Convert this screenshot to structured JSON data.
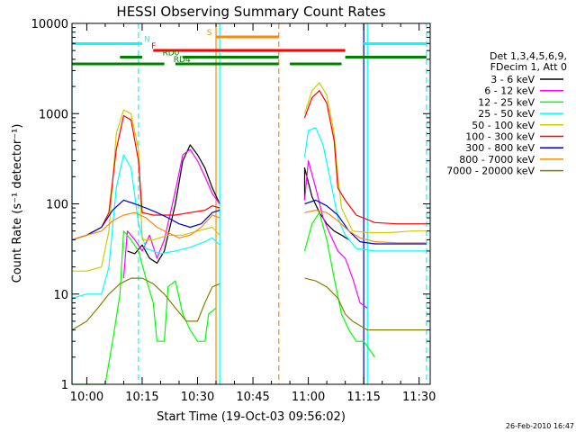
{
  "chart_data": {
    "type": "line",
    "title": "HESSI Observing Summary Count Rates",
    "xlabel": "Start Time (19-Oct-03 09:56:02)",
    "ylabel": "Count Rate (s⁻¹ detector⁻¹)",
    "yscale": "log",
    "ylim": [
      1,
      10000
    ],
    "xlim": [
      "09:56",
      "11:33"
    ],
    "x_ticks": [
      "10:00",
      "10:15",
      "10:30",
      "10:45",
      "11:00",
      "11:15",
      "11:30"
    ],
    "y_ticks": [
      "1",
      "10",
      "100",
      "1000",
      "10000"
    ],
    "grid": false,
    "legend_position": "right",
    "legend_header": [
      "Det 1,3,4,5,6,9,",
      "FDecim 1, Att 0"
    ],
    "footer": "26-Feb-2010 16:47",
    "series": [
      {
        "name": "3 - 6 keV",
        "color": "#000000",
        "points": [
          [
            "10:11",
            30
          ],
          [
            "10:13",
            28
          ],
          [
            "10:15",
            35
          ],
          [
            "10:17",
            25
          ],
          [
            "10:19",
            22
          ],
          [
            "10:21",
            30
          ],
          [
            "10:24",
            100
          ],
          [
            "10:26",
            300
          ],
          [
            "10:28",
            450
          ],
          [
            "10:30",
            350
          ],
          [
            "10:32",
            250
          ],
          [
            "10:34",
            150
          ],
          [
            "10:36",
            100
          ],
          [
            "10:59",
            110
          ],
          [
            "10:59",
            250
          ],
          [
            "11:01",
            120
          ],
          [
            "11:03",
            80
          ],
          [
            "11:05",
            60
          ],
          [
            "11:07",
            50
          ],
          [
            "11:09",
            45
          ],
          [
            "11:11",
            40
          ]
        ]
      },
      {
        "name": "6 - 12 keV",
        "color": "#ff00ff",
        "points": [
          [
            "10:10",
            15
          ],
          [
            "10:11",
            50
          ],
          [
            "10:13",
            40
          ],
          [
            "10:15",
            30
          ],
          [
            "10:17",
            45
          ],
          [
            "10:19",
            25
          ],
          [
            "10:21",
            40
          ],
          [
            "10:24",
            140
          ],
          [
            "10:26",
            350
          ],
          [
            "10:28",
            400
          ],
          [
            "10:30",
            300
          ],
          [
            "10:32",
            200
          ],
          [
            "10:34",
            130
          ],
          [
            "10:36",
            100
          ],
          [
            "10:59",
            110
          ],
          [
            "11:00",
            300
          ],
          [
            "11:02",
            150
          ],
          [
            "11:04",
            70
          ],
          [
            "11:06",
            45
          ],
          [
            "11:08",
            30
          ],
          [
            "11:10",
            25
          ],
          [
            "11:12",
            15
          ],
          [
            "11:14",
            8
          ],
          [
            "11:16",
            7
          ]
        ]
      },
      {
        "name": "12 - 25 keV",
        "color": "#00ff00",
        "points": [
          [
            "09:56",
            1
          ],
          [
            "10:05",
            1
          ],
          [
            "10:07",
            3
          ],
          [
            "10:09",
            10
          ],
          [
            "10:10",
            50
          ],
          [
            "10:12",
            40
          ],
          [
            "10:14",
            30
          ],
          [
            "10:16",
            15
          ],
          [
            "10:18",
            8
          ],
          [
            "10:19",
            3
          ],
          [
            "10:21",
            3
          ],
          [
            "10:22",
            12
          ],
          [
            "10:24",
            14
          ],
          [
            "10:26",
            6
          ],
          [
            "10:28",
            4
          ],
          [
            "10:30",
            3
          ],
          [
            "10:32",
            3
          ],
          [
            "10:33",
            6
          ],
          [
            "10:35",
            7
          ],
          [
            "10:59",
            30
          ],
          [
            "11:01",
            60
          ],
          [
            "11:03",
            80
          ],
          [
            "11:05",
            40
          ],
          [
            "11:07",
            15
          ],
          [
            "11:09",
            6
          ],
          [
            "11:11",
            4
          ],
          [
            "11:13",
            3
          ],
          [
            "11:15",
            3
          ],
          [
            "11:18",
            2
          ]
        ]
      },
      {
        "name": "25 - 50 keV",
        "color": "#00ffff",
        "points": [
          [
            "09:56",
            9
          ],
          [
            "10:00",
            10
          ],
          [
            "10:04",
            10
          ],
          [
            "10:06",
            20
          ],
          [
            "10:08",
            150
          ],
          [
            "10:10",
            350
          ],
          [
            "10:12",
            250
          ],
          [
            "10:14",
            60
          ],
          [
            "10:16",
            32
          ],
          [
            "10:20",
            28
          ],
          [
            "10:24",
            30
          ],
          [
            "10:28",
            33
          ],
          [
            "10:32",
            38
          ],
          [
            "10:34",
            42
          ],
          [
            "10:36",
            35
          ],
          [
            "10:59",
            330
          ],
          [
            "11:00",
            650
          ],
          [
            "11:02",
            700
          ],
          [
            "11:04",
            450
          ],
          [
            "11:06",
            180
          ],
          [
            "11:08",
            70
          ],
          [
            "11:10",
            45
          ],
          [
            "11:13",
            32
          ],
          [
            "11:18",
            30
          ],
          [
            "11:24",
            30
          ],
          [
            "11:32",
            30
          ]
        ]
      },
      {
        "name": "50 - 100 keV",
        "color": "#cccc00",
        "points": [
          [
            "09:56",
            18
          ],
          [
            "10:00",
            18
          ],
          [
            "10:04",
            20
          ],
          [
            "10:06",
            50
          ],
          [
            "10:08",
            600
          ],
          [
            "10:10",
            1100
          ],
          [
            "10:12",
            1000
          ],
          [
            "10:14",
            400
          ],
          [
            "10:15",
            40
          ],
          [
            "10:18",
            40
          ],
          [
            "10:22",
            45
          ],
          [
            "10:26",
            45
          ],
          [
            "10:30",
            50
          ],
          [
            "10:34",
            55
          ],
          [
            "10:36",
            45
          ],
          [
            "10:59",
            1000
          ],
          [
            "11:01",
            1800
          ],
          [
            "11:03",
            2200
          ],
          [
            "11:05",
            1600
          ],
          [
            "11:07",
            600
          ],
          [
            "11:08",
            200
          ],
          [
            "11:09",
            90
          ],
          [
            "11:12",
            50
          ],
          [
            "11:16",
            48
          ],
          [
            "11:22",
            48
          ],
          [
            "11:28",
            50
          ],
          [
            "11:32",
            50
          ]
        ]
      },
      {
        "name": "100 - 300 keV",
        "color": "#ff0000",
        "points": [
          [
            "09:56",
            40
          ],
          [
            "10:00",
            45
          ],
          [
            "10:04",
            55
          ],
          [
            "10:06",
            80
          ],
          [
            "10:08",
            400
          ],
          [
            "10:10",
            950
          ],
          [
            "10:12",
            850
          ],
          [
            "10:14",
            300
          ],
          [
            "10:15",
            80
          ],
          [
            "10:18",
            75
          ],
          [
            "10:24",
            75
          ],
          [
            "10:28",
            80
          ],
          [
            "10:32",
            85
          ],
          [
            "10:34",
            95
          ],
          [
            "10:36",
            90
          ],
          [
            "10:59",
            900
          ],
          [
            "11:01",
            1500
          ],
          [
            "11:03",
            1800
          ],
          [
            "11:05",
            1300
          ],
          [
            "11:07",
            500
          ],
          [
            "11:08",
            150
          ],
          [
            "11:10",
            110
          ],
          [
            "11:13",
            75
          ],
          [
            "11:18",
            62
          ],
          [
            "11:24",
            60
          ],
          [
            "11:32",
            60
          ]
        ]
      },
      {
        "name": "300 - 800 keV",
        "color": "#0000cc",
        "points": [
          [
            "09:56",
            40
          ],
          [
            "10:00",
            45
          ],
          [
            "10:04",
            55
          ],
          [
            "10:07",
            85
          ],
          [
            "10:10",
            110
          ],
          [
            "10:13",
            100
          ],
          [
            "10:16",
            90
          ],
          [
            "10:19",
            80
          ],
          [
            "10:22",
            70
          ],
          [
            "10:25",
            60
          ],
          [
            "10:28",
            55
          ],
          [
            "10:31",
            60
          ],
          [
            "10:34",
            80
          ],
          [
            "10:36",
            85
          ],
          [
            "10:59",
            100
          ],
          [
            "11:02",
            110
          ],
          [
            "11:05",
            95
          ],
          [
            "11:08",
            75
          ],
          [
            "11:11",
            50
          ],
          [
            "11:14",
            38
          ],
          [
            "11:18",
            36
          ],
          [
            "11:24",
            36
          ],
          [
            "11:32",
            36
          ]
        ]
      },
      {
        "name": "800 - 7000 keV",
        "color": "#ff8800",
        "points": [
          [
            "09:56",
            40
          ],
          [
            "10:00",
            45
          ],
          [
            "10:04",
            50
          ],
          [
            "10:07",
            65
          ],
          [
            "10:10",
            75
          ],
          [
            "10:13",
            80
          ],
          [
            "10:16",
            70
          ],
          [
            "10:19",
            55
          ],
          [
            "10:22",
            48
          ],
          [
            "10:25",
            42
          ],
          [
            "10:28",
            45
          ],
          [
            "10:31",
            55
          ],
          [
            "10:34",
            75
          ],
          [
            "10:36",
            70
          ],
          [
            "10:59",
            80
          ],
          [
            "11:02",
            85
          ],
          [
            "11:05",
            80
          ],
          [
            "11:08",
            65
          ],
          [
            "11:11",
            50
          ],
          [
            "11:14",
            42
          ],
          [
            "11:18",
            38
          ],
          [
            "11:24",
            37
          ],
          [
            "11:32",
            37
          ]
        ]
      },
      {
        "name": "7000 - 20000 keV",
        "color": "#808000",
        "points": [
          [
            "09:56",
            4
          ],
          [
            "10:00",
            5
          ],
          [
            "10:03",
            7
          ],
          [
            "10:06",
            10
          ],
          [
            "10:09",
            13
          ],
          [
            "10:12",
            15
          ],
          [
            "10:15",
            15
          ],
          [
            "10:18",
            13
          ],
          [
            "10:21",
            10
          ],
          [
            "10:24",
            7
          ],
          [
            "10:27",
            5
          ],
          [
            "10:30",
            5
          ],
          [
            "10:32",
            8
          ],
          [
            "10:34",
            12
          ],
          [
            "10:36",
            13
          ],
          [
            "10:59",
            15
          ],
          [
            "11:02",
            14
          ],
          [
            "11:05",
            12
          ],
          [
            "11:08",
            9
          ],
          [
            "11:10",
            6
          ],
          [
            "11:12",
            5
          ],
          [
            "11:16",
            4
          ],
          [
            "11:22",
            4
          ],
          [
            "11:28",
            4
          ],
          [
            "11:32",
            4
          ]
        ]
      }
    ],
    "state_bars": [
      {
        "label": "N",
        "color": "#00ffff",
        "level": 2,
        "label_time": "10:15",
        "segments": [
          [
            "09:56",
            "10:15"
          ],
          [
            "11:15",
            "11:32"
          ]
        ]
      },
      {
        "label": "F",
        "color": "#ff0000",
        "level": 3,
        "label_time": "10:17",
        "segments": [
          [
            "10:18",
            "10:20"
          ],
          [
            "10:20",
            "11:10"
          ]
        ]
      },
      {
        "label": "S",
        "color": "#ff8800",
        "level": 1,
        "label_time": "10:32",
        "segments": [
          [
            "10:35",
            "10:52"
          ]
        ]
      },
      {
        "label": "RD0",
        "color": "#008000",
        "level": 4,
        "label_time": "10:20",
        "segments": [
          [
            "10:09",
            "10:15"
          ],
          [
            "10:26",
            "10:52"
          ],
          [
            "11:10",
            "11:32"
          ]
        ]
      },
      {
        "label": "RD4",
        "color": "#008000",
        "level": 5,
        "label_time": "10:23",
        "segments": [
          [
            "09:56",
            "10:21"
          ],
          [
            "10:24",
            "10:52"
          ],
          [
            "10:55",
            "11:09"
          ]
        ]
      }
    ],
    "vlines": [
      {
        "time": "09:56",
        "color": "#00ffff",
        "style": "solid"
      },
      {
        "time": "10:14",
        "color": "#00ffff",
        "style": "dashed"
      },
      {
        "time": "10:35",
        "color": "#ff8800",
        "style": "solid"
      },
      {
        "time": "10:36",
        "color": "#00ffff",
        "style": "solid"
      },
      {
        "time": "10:52",
        "color": "#ff8800",
        "style": "dashed"
      },
      {
        "time": "11:15",
        "color": "#0000cc",
        "style": "solid"
      },
      {
        "time": "11:16",
        "color": "#00ffff",
        "style": "solid"
      },
      {
        "time": "11:32",
        "color": "#00ffff",
        "style": "dashed"
      }
    ]
  }
}
